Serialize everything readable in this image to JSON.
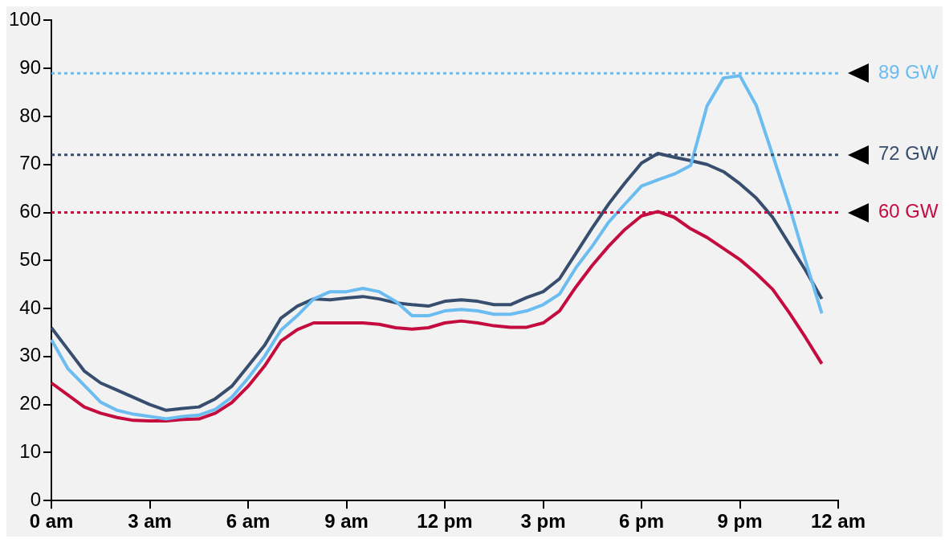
{
  "chart_data": {
    "type": "line",
    "categories": [
      "0 am",
      null,
      null,
      null,
      null,
      null,
      "3 am",
      null,
      null,
      null,
      null,
      null,
      "6 am",
      null,
      null,
      null,
      null,
      null,
      "9 am",
      null,
      null,
      null,
      null,
      null,
      "12 pm",
      null,
      null,
      null,
      null,
      null,
      "3 pm",
      null,
      null,
      null,
      null,
      null,
      "6 pm",
      null,
      null,
      null,
      null,
      null,
      "9 pm",
      null,
      null,
      null,
      null,
      null,
      "12 am"
    ],
    "series": [
      {
        "color": "#6bbcf0",
        "values": [
          33.5,
          27.5,
          24,
          20.5,
          18.8,
          18,
          17.5,
          17,
          17.5,
          17.8,
          19,
          21.5,
          25.5,
          30,
          35.5,
          38.5,
          42,
          43.5,
          43.5,
          44.2,
          43.5,
          41.5,
          38.5,
          38.5,
          39.5,
          39.8,
          39.5,
          38.8,
          38.8,
          39.5,
          40.8,
          43,
          48.5,
          53,
          58,
          61.8,
          65.5,
          66.8,
          68,
          69.8,
          82.2,
          88,
          88.5,
          82.3,
          72,
          61.5,
          50,
          39,
          null
        ]
      },
      {
        "color": "#374e6e",
        "values": [
          36,
          31.5,
          27,
          24.5,
          23,
          21.5,
          20,
          18.8,
          19.2,
          19.5,
          21.2,
          23.8,
          28,
          32.3,
          38,
          40.5,
          42,
          41.8,
          42.2,
          42.5,
          42,
          41.2,
          40.8,
          40.5,
          41.5,
          41.8,
          41.5,
          40.8,
          40.8,
          42.3,
          43.5,
          46.2,
          51.5,
          56.8,
          61.8,
          66.2,
          70.3,
          72.3,
          71.5,
          70.8,
          70,
          68.5,
          66,
          63,
          59,
          53.5,
          48,
          42,
          null
        ]
      },
      {
        "color": "#c40c3f",
        "values": [
          24.5,
          22,
          19.5,
          18.2,
          17.3,
          16.7,
          16.6,
          16.6,
          16.9,
          17,
          18.2,
          20.4,
          23.8,
          28,
          33.2,
          35.6,
          37,
          37,
          37,
          37,
          36.7,
          36,
          35.7,
          36,
          37,
          37.4,
          37,
          36.4,
          36.1,
          36.1,
          37,
          39.5,
          44.5,
          49,
          53,
          56.5,
          59.3,
          60.2,
          59,
          56.6,
          54.8,
          52.5,
          50.2,
          47.3,
          44,
          39.2,
          34,
          28.5,
          null
        ]
      }
    ],
    "ylim": [
      0,
      100
    ],
    "yticks": [
      0,
      10,
      20,
      30,
      40,
      50,
      60,
      70,
      80,
      90,
      100
    ],
    "grid": false,
    "legend": false,
    "marker": "none",
    "line_style": "solid",
    "ref_lines": [
      {
        "axis": "y",
        "value": 89,
        "label": "89 GW",
        "color": "#6bbcf0",
        "line_style": "dotted"
      },
      {
        "axis": "y",
        "value": 72,
        "label": "72 GW",
        "color": "#374e6e",
        "line_style": "dotted"
      },
      {
        "axis": "y",
        "value": 60,
        "label": "60 GW",
        "color": "#c40c3f",
        "line_style": "dotted"
      }
    ]
  }
}
